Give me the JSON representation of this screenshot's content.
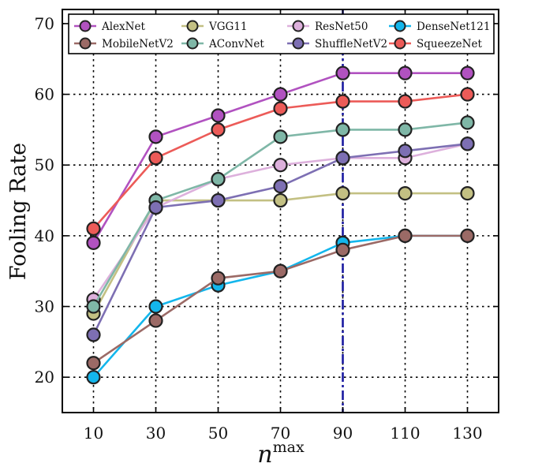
{
  "chart_data": {
    "type": "line",
    "ylabel": "Fooling Rate",
    "xlabel": {
      "base": "n",
      "superscript": "max"
    },
    "categories": [
      10,
      30,
      50,
      70,
      90,
      110,
      130
    ],
    "x_tick_labels": [
      "10",
      "30",
      "50",
      "70",
      "90",
      "110",
      "130"
    ],
    "ylim": [
      15,
      72
    ],
    "y_ticks": [
      20,
      30,
      40,
      50,
      60,
      70
    ],
    "y_tick_labels": [
      "20",
      "30",
      "40",
      "50",
      "60",
      "70"
    ],
    "grid": true,
    "legend_position": "top",
    "vertical_marker": {
      "x": 90,
      "color": "#1a1aa0",
      "style": "dash-dot"
    },
    "series": [
      {
        "name": "AlexNet",
        "color": "#b152c0",
        "values": [
          39,
          54,
          57,
          60,
          63,
          63,
          63
        ]
      },
      {
        "name": "VGG11",
        "color": "#c3c083",
        "values": [
          29,
          45,
          45,
          45,
          46,
          46,
          46
        ]
      },
      {
        "name": "ResNet50",
        "color": "#ddb0dc",
        "values": [
          31,
          44,
          48,
          50,
          51,
          51,
          53
        ]
      },
      {
        "name": "DenseNet121",
        "color": "#13b6ec",
        "values": [
          20,
          30,
          33,
          35,
          39,
          40,
          40
        ]
      },
      {
        "name": "MobileNetV2",
        "color": "#9b6a66",
        "values": [
          22,
          28,
          34,
          35,
          38,
          40,
          40
        ]
      },
      {
        "name": "AConvNet",
        "color": "#7fb7a7",
        "values": [
          30,
          45,
          48,
          54,
          55,
          55,
          56
        ]
      },
      {
        "name": "ShuffleNetV2",
        "color": "#7d6fb3",
        "values": [
          26,
          44,
          45,
          47,
          51,
          52,
          53
        ]
      },
      {
        "name": "SqueezeNet",
        "color": "#ec5b58",
        "values": [
          41,
          51,
          55,
          58,
          59,
          59,
          60
        ]
      }
    ]
  }
}
